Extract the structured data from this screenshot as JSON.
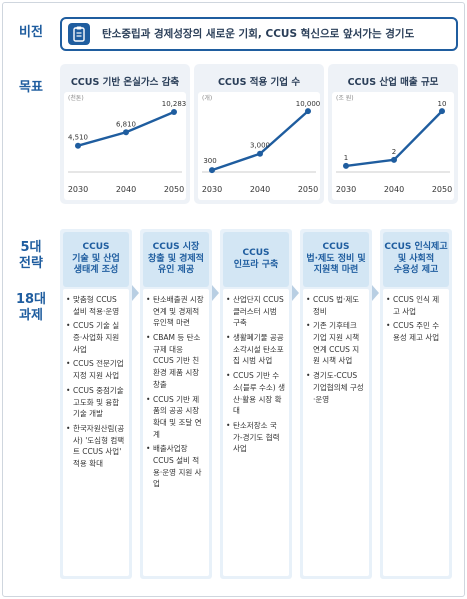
{
  "labels": {
    "vision": "비전",
    "goal": "목표",
    "strategy": "5대\n전략",
    "tasks": "18대\n과제"
  },
  "vision": {
    "text": "탄소중립과 경제성장의 새로운 기회, CCUS 혁신으로 앞서가는 경기도",
    "icon": "clipboard-icon"
  },
  "colors": {
    "accent": "#1f5d9f",
    "panel": "#eef2f7",
    "column": "#e8f1f9",
    "column_head": "#d3e6f4"
  },
  "charts": [
    {
      "title": "CCUS 기반 온실가스 감축",
      "unit": "(천톤)",
      "type": "line",
      "x": [
        "2030",
        "2040",
        "2050"
      ],
      "values": [
        4510,
        6810,
        10283
      ],
      "value_labels": [
        "4,510",
        "6,810",
        "10,283"
      ],
      "ylim": [
        0,
        12000
      ]
    },
    {
      "title": "CCUS 적용 기업 수",
      "unit": "(개)",
      "type": "line",
      "x": [
        "2030",
        "2040",
        "2050"
      ],
      "values": [
        300,
        3000,
        10000
      ],
      "value_labels": [
        "300",
        "3,000",
        "10,000"
      ],
      "ylim": [
        0,
        11500
      ]
    },
    {
      "title": "CCUS 산업 매출 규모",
      "unit": "(조 원)",
      "type": "line",
      "x": [
        "2030",
        "2040",
        "2050"
      ],
      "values": [
        1,
        2,
        10
      ],
      "value_labels": [
        "1",
        "2",
        "10"
      ],
      "ylim": [
        0,
        11.5
      ]
    }
  ],
  "strategies": [
    {
      "title": "CCUS\n기술 및 산업\n생태계 조성",
      "tasks": [
        "맞춤형 CCUS 설비 적용·운영",
        "CCUS 기술 실증·사업화 지원 사업",
        "CCUS 전문기업 지정 지원 사업",
        "CCUS 중점기술 고도화 및 융합기술 개발",
        "한국자원산림(공사) '도심형 컴팩트 CCUS 사업' 적용 확대"
      ]
    },
    {
      "title": "CCUS 시장\n창출 및 경제적\n유인 제공",
      "tasks": [
        "탄소배출권 시장 연계 및 경제적 유인책 마련",
        "CBAM 등 탄소규제 대응 CCUS 기반 친환경 제품 시장 창출",
        "CCUS 기반 제품의 공공 시장 확대 및 조달 연계",
        "배출사업장 CCUS 설비 적용·운영 지원 사업"
      ]
    },
    {
      "title": "CCUS\n인프라 구축",
      "tasks": [
        "산업단지 CCUS 클러스터 시범 구축",
        "생활폐기물 공공소각시설 탄소포집 시범 사업",
        "CCUS 기반 수소(블루 수소) 생산·활용 시장 확대",
        "탄소저장소 국가-경기도 협력 사업"
      ]
    },
    {
      "title": "CCUS\n법·제도 정비 및\n지원책 마련",
      "tasks": [
        "CCUS 법·제도 정비",
        "기존 기후테크 기업 지원 시책 연계 CCUS 지원 시책 사업",
        "경기도-CCUS 기업협의체 구성·운영"
      ]
    },
    {
      "title": "CCUS 인식제고\n및 사회적\n수용성 제고",
      "tasks": [
        "CCUS 인식 제고 사업",
        "CCUS 주민 수용성 제고 사업"
      ]
    }
  ]
}
